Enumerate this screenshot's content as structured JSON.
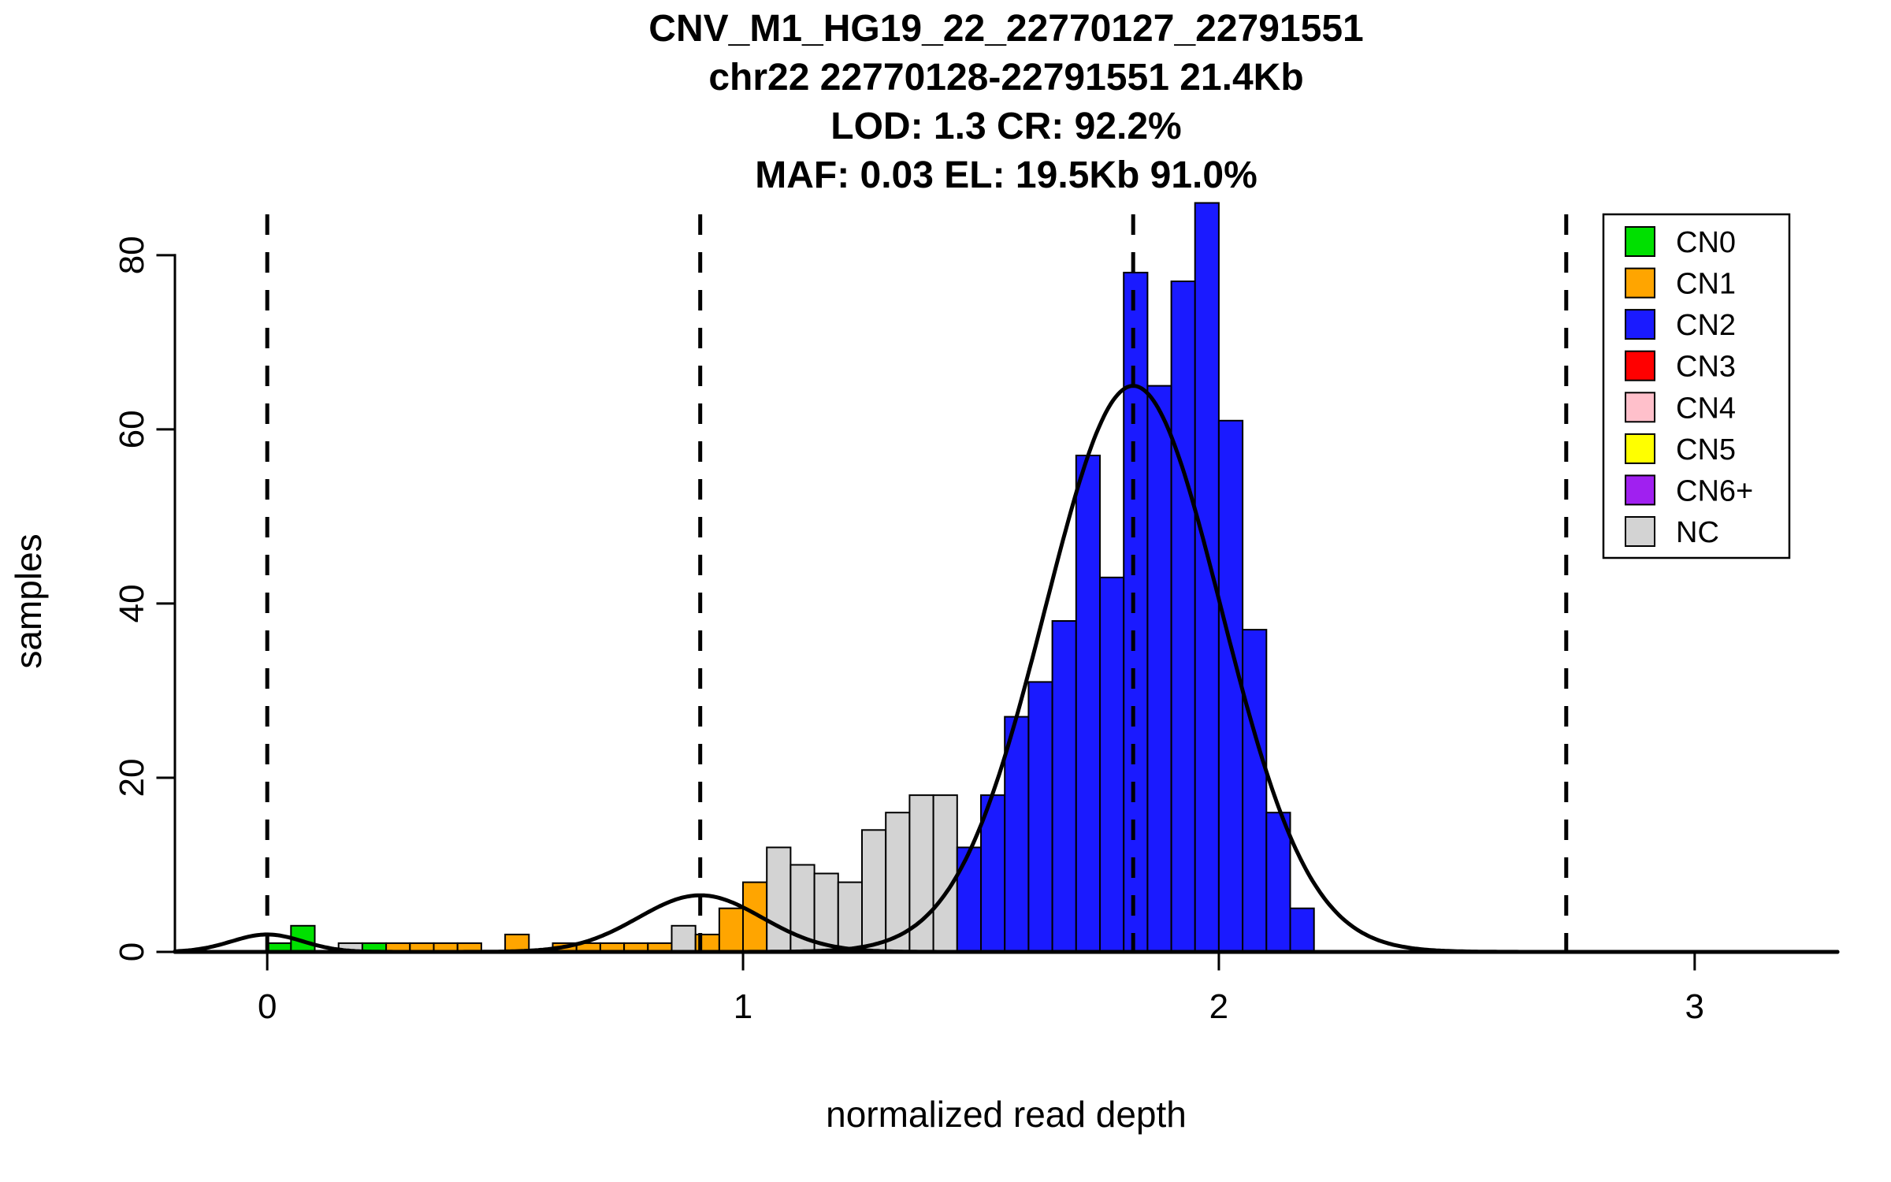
{
  "chart_data": {
    "type": "histogram",
    "title_lines": [
      "CNV_M1_HG19_22_22770127_22791551",
      "chr22 22770128-22791551 21.4Kb",
      "LOD: 1.3 CR: 92.2%",
      "MAF: 0.03 EL: 19.5Kb 91.0%"
    ],
    "xlabel": "normalized read depth",
    "ylabel": "samples",
    "x_ticks": [
      0,
      1,
      2,
      3
    ],
    "y_ticks": [
      0,
      20,
      40,
      60,
      80
    ],
    "xlim": [
      -0.194,
      3.3
    ],
    "ylim": [
      0,
      86.5
    ],
    "bin_width": 0.05,
    "grid": false,
    "colors": {
      "CN0": "#00e000",
      "CN1": "#ffa500",
      "CN2": "#1a1aff",
      "CN3": "#ff0000",
      "CN4": "#ffc0cb",
      "CN5": "#ffff00",
      "CN6+": "#a020f0",
      "NC": "#d3d3d3"
    },
    "bars": [
      {
        "x": 0.0,
        "height": 1,
        "cn": "CN0"
      },
      {
        "x": 0.05,
        "height": 3,
        "cn": "CN0"
      },
      {
        "x": 0.15,
        "height": 1,
        "cn": "NC"
      },
      {
        "x": 0.2,
        "height": 1,
        "cn": "CN0"
      },
      {
        "x": 0.25,
        "height": 1,
        "cn": "CN1"
      },
      {
        "x": 0.3,
        "height": 1,
        "cn": "CN1"
      },
      {
        "x": 0.35,
        "height": 1,
        "cn": "CN1"
      },
      {
        "x": 0.4,
        "height": 1,
        "cn": "CN1"
      },
      {
        "x": 0.5,
        "height": 2,
        "cn": "CN1"
      },
      {
        "x": 0.6,
        "height": 1,
        "cn": "CN1"
      },
      {
        "x": 0.65,
        "height": 1,
        "cn": "CN1"
      },
      {
        "x": 0.7,
        "height": 1,
        "cn": "CN1"
      },
      {
        "x": 0.75,
        "height": 1,
        "cn": "CN1"
      },
      {
        "x": 0.8,
        "height": 1,
        "cn": "CN1"
      },
      {
        "x": 0.85,
        "height": 3,
        "cn": "NC"
      },
      {
        "x": 0.9,
        "height": 2,
        "cn": "CN1"
      },
      {
        "x": 0.95,
        "height": 5,
        "cn": "CN1"
      },
      {
        "x": 1.0,
        "height": 8,
        "cn": "CN1"
      },
      {
        "x": 1.05,
        "height": 12,
        "cn": "NC"
      },
      {
        "x": 1.1,
        "height": 10,
        "cn": "NC"
      },
      {
        "x": 1.15,
        "height": 9,
        "cn": "NC"
      },
      {
        "x": 1.2,
        "height": 8,
        "cn": "NC"
      },
      {
        "x": 1.25,
        "height": 14,
        "cn": "NC"
      },
      {
        "x": 1.3,
        "height": 16,
        "cn": "NC"
      },
      {
        "x": 1.35,
        "height": 18,
        "cn": "NC"
      },
      {
        "x": 1.4,
        "height": 18,
        "cn": "NC"
      },
      {
        "x": 1.45,
        "height": 12,
        "cn": "CN2"
      },
      {
        "x": 1.5,
        "height": 18,
        "cn": "CN2"
      },
      {
        "x": 1.55,
        "height": 27,
        "cn": "CN2"
      },
      {
        "x": 1.6,
        "height": 31,
        "cn": "CN2"
      },
      {
        "x": 1.65,
        "height": 38,
        "cn": "CN2"
      },
      {
        "x": 1.7,
        "height": 57,
        "cn": "CN2"
      },
      {
        "x": 1.75,
        "height": 43,
        "cn": "CN2"
      },
      {
        "x": 1.8,
        "height": 78,
        "cn": "CN2"
      },
      {
        "x": 1.85,
        "height": 65,
        "cn": "CN2"
      },
      {
        "x": 1.9,
        "height": 77,
        "cn": "CN2"
      },
      {
        "x": 1.95,
        "height": 86,
        "cn": "CN2"
      },
      {
        "x": 2.0,
        "height": 61,
        "cn": "CN2"
      },
      {
        "x": 2.05,
        "height": 37,
        "cn": "CN2"
      },
      {
        "x": 2.1,
        "height": 16,
        "cn": "CN2"
      },
      {
        "x": 2.15,
        "height": 5,
        "cn": "CN2"
      }
    ],
    "curves": [
      {
        "mean": 0.0,
        "sd": 0.075,
        "amplitude": 2.0
      },
      {
        "mean": 0.91,
        "sd": 0.13,
        "amplitude": 6.5
      },
      {
        "mean": 1.82,
        "sd": 0.185,
        "amplitude": 65.0
      }
    ],
    "dashed_lines_x": [
      0.0,
      0.91,
      1.82,
      2.73
    ],
    "legend": {
      "position": "top-right",
      "entries": [
        {
          "label": "CN0",
          "cn": "CN0"
        },
        {
          "label": "CN1",
          "cn": "CN1"
        },
        {
          "label": "CN2",
          "cn": "CN2"
        },
        {
          "label": "CN3",
          "cn": "CN3"
        },
        {
          "label": "CN4",
          "cn": "CN4"
        },
        {
          "label": "CN5",
          "cn": "CN5"
        },
        {
          "label": "CN6+",
          "cn": "CN6+"
        },
        {
          "label": "NC",
          "cn": "NC"
        }
      ]
    }
  }
}
